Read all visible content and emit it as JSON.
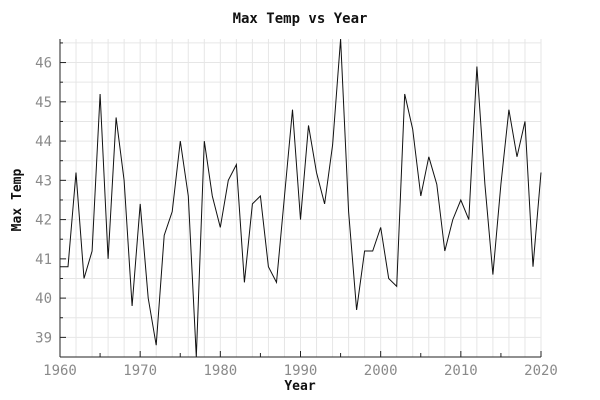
{
  "chart_data": {
    "type": "line",
    "title": "Max Temp vs Year",
    "xlabel": "Year",
    "ylabel": "Max Temp",
    "xlim": [
      1960,
      2020
    ],
    "ylim": [
      38.5,
      46.6
    ],
    "x_ticks": [
      1960,
      1970,
      1980,
      1990,
      2000,
      2010,
      2020
    ],
    "y_ticks": [
      39,
      40,
      41,
      42,
      43,
      44,
      45,
      46
    ],
    "grid": true,
    "series": [
      {
        "x": [
          1960,
          1961,
          1962,
          1963,
          1964,
          1965,
          1966,
          1967,
          1968,
          1969,
          1970,
          1971,
          1972,
          1973,
          1974,
          1975,
          1976,
          1977,
          1978,
          1979,
          1980,
          1981,
          1982,
          1983,
          1984,
          1985,
          1986,
          1987,
          1988,
          1989,
          1990,
          1991,
          1992,
          1993,
          1994,
          1995,
          1996,
          1997,
          1998,
          1999,
          2000,
          2001,
          2002,
          2003,
          2004,
          2005,
          2006,
          2007,
          2008,
          2009,
          2010,
          2011,
          2012,
          2013,
          2014,
          2015,
          2016,
          2017,
          2018,
          2019,
          2020
        ],
        "y": [
          40.8,
          40.8,
          43.2,
          40.5,
          41.2,
          45.2,
          41.0,
          44.6,
          43.0,
          39.8,
          42.4,
          40.0,
          38.8,
          41.6,
          42.2,
          44.0,
          42.6,
          38.4,
          44.0,
          42.6,
          41.8,
          43.0,
          43.4,
          40.4,
          42.4,
          42.6,
          40.8,
          40.4,
          42.6,
          44.8,
          42.0,
          44.4,
          43.2,
          42.4,
          43.9,
          46.6,
          42.2,
          39.7,
          41.2,
          41.2,
          41.8,
          40.5,
          40.3,
          45.2,
          44.3,
          42.6,
          43.6,
          42.9,
          41.2,
          42.0,
          42.5,
          42.0,
          45.9,
          42.9,
          40.6,
          42.9,
          44.8,
          43.6,
          44.5,
          40.8,
          43.2
        ]
      }
    ]
  }
}
